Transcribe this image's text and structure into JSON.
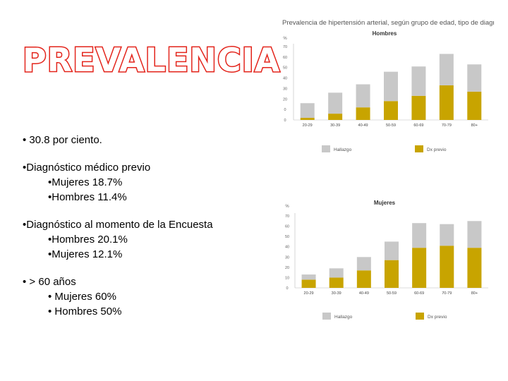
{
  "slide": {
    "title": "PREVALENCIA",
    "colors": {
      "title_outline": "#e3231a",
      "hallazgo": "#c8c8c8",
      "dx_previo": "#c8a400"
    },
    "bullets": [
      {
        "text": "• 30.8 por ciento.",
        "subs": []
      },
      {
        "text": "•Diagnóstico médico previo",
        "subs": [
          "•Mujeres 18.7%",
          "•Hombres 11.4%"
        ]
      },
      {
        "text": "•Diagnóstico al momento de la Encuesta",
        "subs": [
          "•Hombres 20.1%",
          "•Mujeres 12.1%"
        ]
      },
      {
        "text": "• > 60 años",
        "subs": [
          "• Mujeres 60%",
          "• Hombres 50%"
        ]
      }
    ]
  },
  "chart_data": [
    {
      "type": "bar",
      "stacked": true,
      "figure_title": "Prevalencia de hipertensión arterial, según grupo de edad, tipo de diagnóstico",
      "title": "Hombres",
      "ylabel": "%",
      "yticks": [
        "70",
        "60",
        "50",
        "40",
        "30",
        "20",
        "0",
        "0"
      ],
      "ylim": [
        0,
        70
      ],
      "categories": [
        "20-29",
        "30-39",
        "40-49",
        "50-59",
        "60-69",
        "70-79",
        "80+"
      ],
      "series": [
        {
          "name": "Dx previo",
          "values": [
            2,
            6,
            12,
            18,
            23,
            33,
            27
          ]
        },
        {
          "name": "Hallazgo",
          "values": [
            14,
            20,
            22,
            28,
            28,
            30,
            26
          ]
        }
      ],
      "legend": [
        "Hallazgo",
        "Dx previo"
      ]
    },
    {
      "type": "bar",
      "stacked": true,
      "title": "Mujeres",
      "ylabel": "%",
      "yticks": [
        "70",
        "60",
        "50",
        "40",
        "30",
        "20",
        "10",
        "0"
      ],
      "ylim": [
        0,
        70
      ],
      "categories": [
        "20-29",
        "30-39",
        "40-49",
        "50-59",
        "60-69",
        "70-79",
        "80+"
      ],
      "series": [
        {
          "name": "Dx previo",
          "values": [
            8,
            10,
            17,
            27,
            39,
            41,
            39
          ]
        },
        {
          "name": "Hallazgo",
          "values": [
            5,
            9,
            13,
            18,
            24,
            21,
            26
          ]
        }
      ],
      "legend": [
        "Hallazgo",
        "Dx previo"
      ]
    }
  ]
}
